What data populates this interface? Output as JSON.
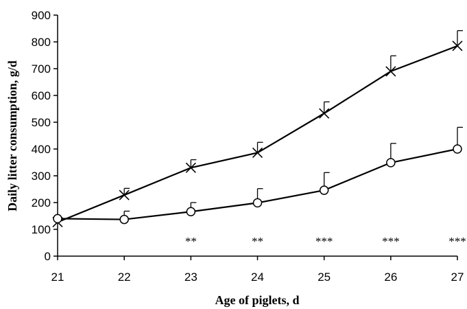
{
  "chart_data": {
    "type": "line",
    "xlabel": "Age of piglets, d",
    "ylabel": "Daily litter consumption, g/d",
    "x": [
      21,
      22,
      23,
      24,
      25,
      26,
      27
    ],
    "xlim": [
      21,
      27
    ],
    "ylim": [
      0,
      900
    ],
    "yticks": [
      0,
      100,
      200,
      300,
      400,
      500,
      600,
      700,
      800,
      900
    ],
    "xticks": [
      21,
      22,
      23,
      24,
      25,
      26,
      27
    ],
    "grid": false,
    "series": [
      {
        "marker": "x",
        "values": [
          127,
          228,
          330,
          386,
          533,
          690,
          785
        ],
        "error_upper": [
          127,
          253,
          360,
          425,
          576,
          748,
          842
        ]
      },
      {
        "marker": "circle",
        "values": [
          140,
          137,
          166,
          199,
          246,
          349,
          400
        ],
        "error_upper": [
          140,
          168,
          200,
          252,
          312,
          421,
          481
        ]
      }
    ],
    "annotations": [
      {
        "x": 23,
        "text": "**"
      },
      {
        "x": 24,
        "text": "**"
      },
      {
        "x": 25,
        "text": "***"
      },
      {
        "x": 26,
        "text": "***"
      },
      {
        "x": 27,
        "text": "***"
      }
    ]
  }
}
